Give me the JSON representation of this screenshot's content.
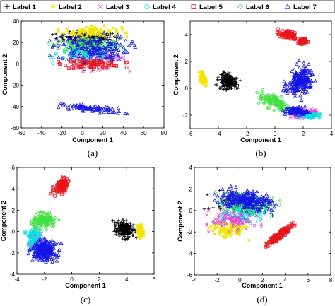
{
  "legend": {
    "series": [
      {
        "name": "Label 1",
        "color": "#000000",
        "marker": "plus"
      },
      {
        "name": "Label 2",
        "color": "#f2e600",
        "marker": "star"
      },
      {
        "name": "Label 3",
        "color": "#e040e0",
        "marker": "cross"
      },
      {
        "name": "Label 4",
        "color": "#00e0e0",
        "marker": "circle"
      },
      {
        "name": "Label 5",
        "color": "#e8141c",
        "marker": "square"
      },
      {
        "name": "Label 6",
        "color": "#3ee03e",
        "marker": "diamond"
      },
      {
        "name": "Label 7",
        "color": "#1414e6",
        "marker": "triangle"
      }
    ]
  },
  "chart_data": [
    {
      "type": "scatter",
      "caption": "(a)",
      "xlabel": "Component 1",
      "ylabel": "Component 2",
      "xlim": [
        -60,
        80
      ],
      "ylim": [
        -60,
        40
      ],
      "xticks": [
        "-60",
        "-40",
        "-20",
        "0",
        "20",
        "40",
        "60",
        "80"
      ],
      "yticks": [
        "-60",
        "-40",
        "-20",
        "0",
        "20",
        "40"
      ],
      "series": [
        {
          "name": "Label 1",
          "clusters": [
            [
              5,
              25,
              30,
              5,
              150,
              0
            ]
          ]
        },
        {
          "name": "Label 2",
          "clusters": [
            [
              10,
              30,
              28,
              5,
              110,
              0
            ]
          ]
        },
        {
          "name": "Label 3",
          "clusters": [
            [
              15,
              5,
              28,
              10,
              90,
              0
            ]
          ]
        },
        {
          "name": "Label 4",
          "clusters": [
            [
              5,
              10,
              30,
              8,
              110,
              0
            ]
          ]
        },
        {
          "name": "Label 5",
          "clusters": [
            [
              10,
              0,
              28,
              4,
              110,
              0
            ]
          ]
        },
        {
          "name": "Label 6",
          "clusters": [
            [
              5,
              18,
              32,
              6,
              130,
              0
            ]
          ]
        },
        {
          "name": "Label 7",
          "clusters": [
            [
              10,
              15,
              35,
              12,
              170,
              0
            ],
            [
              10,
              -42,
              30,
              3,
              90,
              -0.1
            ]
          ]
        }
      ]
    },
    {
      "type": "scatter",
      "caption": "(b)",
      "xlabel": "Component 1",
      "ylabel": "Component 2",
      "xlim": [
        -6,
        4
      ],
      "ylim": [
        -3,
        5
      ],
      "xticks": [
        "-6",
        "-4",
        "-2",
        "0",
        "2",
        "4"
      ],
      "yticks": [
        "-2",
        "0",
        "2",
        "4"
      ],
      "series": [
        {
          "name": "Label 1",
          "clusters": [
            [
              -3.3,
              0.5,
              0.65,
              0.55,
              220,
              -0.3
            ]
          ]
        },
        {
          "name": "Label 2",
          "clusters": [
            [
              -5.1,
              0.7,
              0.18,
              0.45,
              130,
              0.3
            ]
          ]
        },
        {
          "name": "Label 3",
          "clusters": [
            [
              2.0,
              -1.9,
              0.8,
              0.3,
              90,
              0.2
            ]
          ]
        },
        {
          "name": "Label 4",
          "clusters": [
            [
              2.5,
              -2.0,
              0.7,
              0.2,
              90,
              0
            ]
          ]
        },
        {
          "name": "Label 5",
          "clusters": [
            [
              0.8,
              4.0,
              0.55,
              0.3,
              100,
              -0.3
            ],
            [
              2.0,
              3.5,
              0.3,
              0.2,
              60,
              0
            ]
          ]
        },
        {
          "name": "Label 6",
          "clusters": [
            [
              0.0,
              -1.0,
              1.2,
              0.5,
              120,
              -0.4
            ]
          ]
        },
        {
          "name": "Label 7",
          "clusters": [
            [
              1.8,
              0.6,
              0.75,
              1.1,
              220,
              -0.6
            ],
            [
              1.5,
              -1.7,
              0.8,
              0.3,
              100,
              0
            ]
          ]
        }
      ]
    },
    {
      "type": "scatter",
      "caption": "(c)",
      "xlabel": "Component 1",
      "ylabel": "Component 2",
      "xlim": [
        -4,
        6
      ],
      "ylim": [
        -4,
        6
      ],
      "xticks": [
        "-4",
        "-2",
        "0",
        "2",
        "4",
        "6"
      ],
      "yticks": [
        "-4",
        "-2",
        "0",
        "2",
        "4",
        "6"
      ],
      "series": [
        {
          "name": "Label 1",
          "clusters": [
            [
              3.8,
              0.2,
              0.65,
              0.8,
              220,
              0.2
            ]
          ]
        },
        {
          "name": "Label 2",
          "clusters": [
            [
              5.0,
              0.0,
              0.2,
              0.55,
              140,
              0
            ]
          ]
        },
        {
          "name": "Label 3",
          "clusters": [
            [
              -2.6,
              -1.0,
              0.6,
              0.9,
              80,
              0
            ]
          ]
        },
        {
          "name": "Label 4",
          "clusters": [
            [
              -2.8,
              -0.5,
              0.5,
              1.2,
              100,
              0
            ]
          ]
        },
        {
          "name": "Label 5",
          "clusters": [
            [
              -0.8,
              4.2,
              0.4,
              0.8,
              110,
              -0.6
            ]
          ]
        },
        {
          "name": "Label 6",
          "clusters": [
            [
              -2.0,
              1.0,
              0.9,
              0.7,
              130,
              0
            ]
          ]
        },
        {
          "name": "Label 7",
          "clusters": [
            [
              -2.0,
              -1.8,
              0.9,
              0.9,
              220,
              -0.2
            ]
          ]
        }
      ]
    },
    {
      "type": "scatter",
      "caption": "(d)",
      "xlabel": "Component 1",
      "ylabel": "Component 2",
      "xlim": [
        -4,
        8
      ],
      "ylim": [
        -6,
        4
      ],
      "xticks": [
        "-4",
        "-2",
        "0",
        "2",
        "4",
        "6",
        "8"
      ],
      "yticks": [
        "-6",
        "-4",
        "-2",
        "0",
        "2",
        "4"
      ],
      "series": [
        {
          "name": "Label 1",
          "clusters": [
            [
              0.0,
              0.5,
              2.5,
              1.0,
              100,
              -0.2
            ]
          ]
        },
        {
          "name": "Label 2",
          "clusters": [
            [
              -1.0,
              -1.8,
              1.5,
              0.8,
              100,
              0
            ]
          ]
        },
        {
          "name": "Label 3",
          "clusters": [
            [
              -0.5,
              -0.8,
              2.0,
              1.0,
              120,
              0
            ]
          ]
        },
        {
          "name": "Label 4",
          "clusters": [
            [
              0.5,
              0.0,
              2.0,
              1.0,
              100,
              0
            ]
          ]
        },
        {
          "name": "Label 5",
          "clusters": [
            [
              3.5,
              -2.3,
              1.4,
              0.25,
              170,
              0.7
            ]
          ]
        },
        {
          "name": "Label 6",
          "clusters": [
            [
              0.5,
              0.8,
              2.5,
              0.8,
              120,
              -0.15
            ]
          ]
        },
        {
          "name": "Label 7",
          "clusters": [
            [
              0.5,
              1.0,
              2.3,
              0.9,
              220,
              -0.12
            ]
          ]
        }
      ]
    }
  ]
}
